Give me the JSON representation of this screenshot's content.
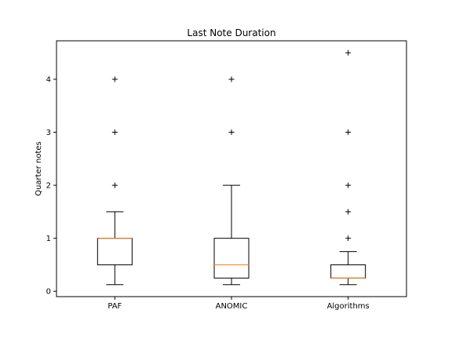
{
  "chart_data": {
    "type": "box",
    "title": "Last Note Duration",
    "xlabel": "",
    "ylabel": "Quarter notes",
    "ylim": [
      -0.1,
      4.725
    ],
    "yticks": [
      0,
      1,
      2,
      3,
      4
    ],
    "ytick_labels": [
      "0",
      "1",
      "2",
      "3",
      "4"
    ],
    "categories": [
      "PAF",
      "ANOMIC",
      "Algorithms"
    ],
    "grid": false,
    "colors": {
      "box": "#000000",
      "median": "#ff7f0e",
      "flier": "#000000"
    },
    "boxes": [
      {
        "name": "PAF",
        "whisker_low": 0.125,
        "q1": 0.5,
        "median": 1.0,
        "q3": 1.0,
        "whisker_high": 1.5,
        "outliers": [
          2,
          3,
          4
        ]
      },
      {
        "name": "ANOMIC",
        "whisker_low": 0.125,
        "q1": 0.25,
        "median": 0.5,
        "q3": 1.0,
        "whisker_high": 2.0,
        "outliers": [
          3,
          4
        ]
      },
      {
        "name": "Algorithms",
        "whisker_low": 0.125,
        "q1": 0.25,
        "median": 0.25,
        "q3": 0.5,
        "whisker_high": 0.75,
        "outliers": [
          1,
          1.5,
          2,
          3,
          4.5
        ]
      }
    ]
  }
}
